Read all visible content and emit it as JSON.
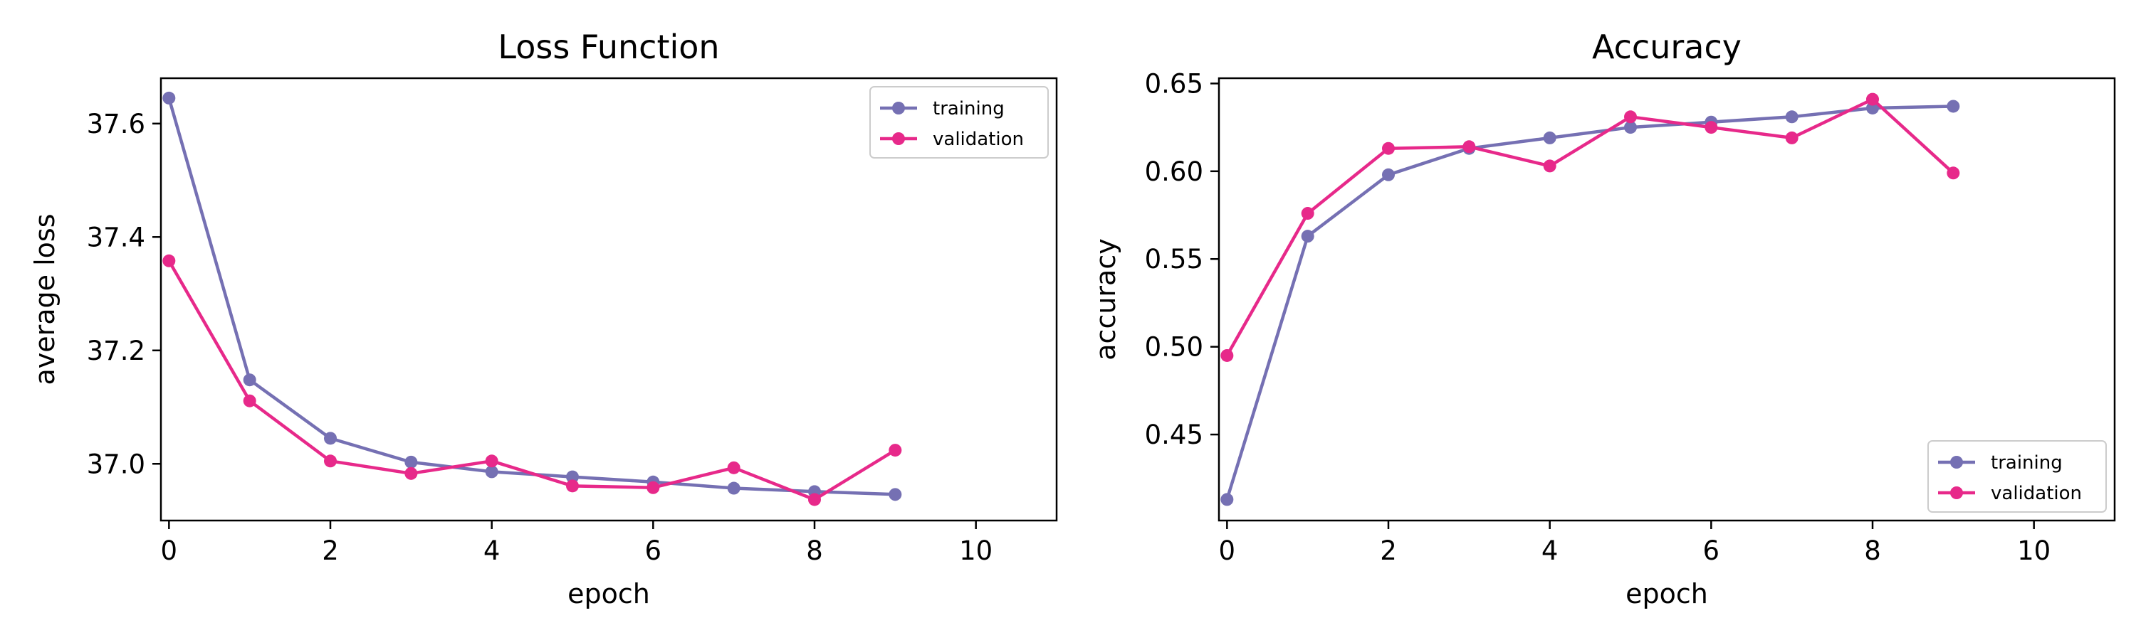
{
  "chart_data": [
    {
      "type": "line",
      "title": "Loss Function",
      "xlabel": "epoch",
      "ylabel": "average loss",
      "xlim": [
        -0.1,
        11
      ],
      "ylim": [
        36.9,
        37.68
      ],
      "xticks": [
        0,
        2,
        4,
        6,
        8,
        10
      ],
      "xtick_labels": [
        "0",
        "2",
        "4",
        "6",
        "8",
        "10"
      ],
      "yticks": [
        37.0,
        37.2,
        37.4,
        37.6
      ],
      "ytick_labels": [
        "37.0",
        "37.2",
        "37.4",
        "37.6"
      ],
      "legend_position": "upper right",
      "grid": false,
      "x": [
        0,
        1,
        2,
        3,
        4,
        5,
        6,
        7,
        8,
        9
      ],
      "series": [
        {
          "name": "training",
          "color": "#7570b3",
          "values": [
            37.645,
            37.148,
            37.045,
            37.003,
            36.986,
            36.977,
            36.968,
            36.957,
            36.951,
            36.946
          ]
        },
        {
          "name": "validation",
          "color": "#e7298a",
          "values": [
            37.358,
            37.111,
            37.005,
            36.983,
            37.005,
            36.961,
            36.958,
            36.993,
            36.937,
            37.024
          ]
        }
      ]
    },
    {
      "type": "line",
      "title": "Accuracy",
      "xlabel": "epoch",
      "ylabel": "accuracy",
      "xlim": [
        -0.1,
        11
      ],
      "ylim": [
        0.401,
        0.653
      ],
      "xticks": [
        0,
        2,
        4,
        6,
        8,
        10
      ],
      "xtick_labels": [
        "0",
        "2",
        "4",
        "6",
        "8",
        "10"
      ],
      "yticks": [
        0.45,
        0.5,
        0.55,
        0.6,
        0.65
      ],
      "ytick_labels": [
        "0.45",
        "0.50",
        "0.55",
        "0.60",
        "0.65"
      ],
      "legend_position": "lower right",
      "grid": false,
      "x": [
        0,
        1,
        2,
        3,
        4,
        5,
        6,
        7,
        8,
        9
      ],
      "series": [
        {
          "name": "training",
          "color": "#7570b3",
          "values": [
            0.413,
            0.563,
            0.598,
            0.613,
            0.619,
            0.625,
            0.628,
            0.631,
            0.636,
            0.637
          ]
        },
        {
          "name": "validation",
          "color": "#e7298a",
          "values": [
            0.495,
            0.576,
            0.613,
            0.614,
            0.603,
            0.631,
            0.625,
            0.619,
            0.641,
            0.599
          ]
        }
      ]
    }
  ]
}
